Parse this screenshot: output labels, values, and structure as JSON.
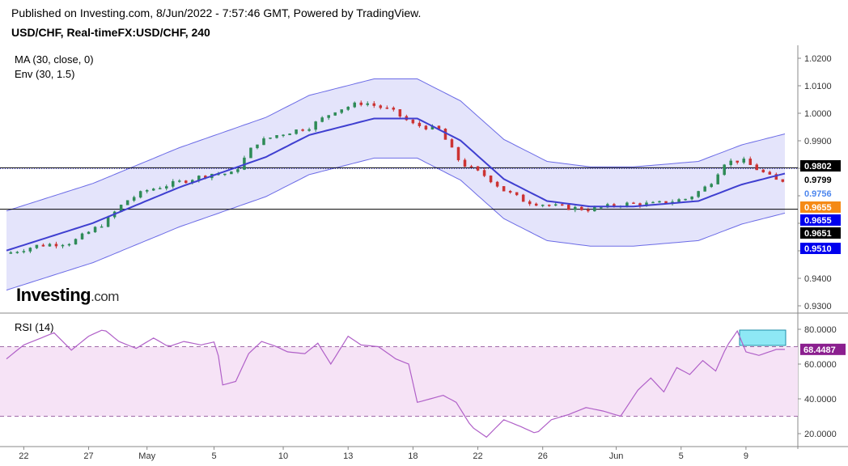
{
  "header": {
    "published": "Published on Investing.com, 8/Jun/2022 - 7:57:46 GMT, Powered by TradingView.",
    "symbol": "USD/CHF, Real-timeFX:USD/CHF, 240"
  },
  "indicators": {
    "ma": "MA (30, close, 0)",
    "env": "Env (30, 1.5)",
    "rsi": "RSI (14)"
  },
  "logo": {
    "brand": "Investing",
    "suffix": ".com"
  },
  "colors": {
    "ma_line": "#3f3fd0",
    "envelope_fill": "#e4e4fb",
    "envelope_line": "#6b6be6",
    "candle_up": "#2e8b57",
    "candle_down": "#cc3333",
    "rsi_line": "#b060c8",
    "rsi_fill": "#f6e3f6",
    "label_black": "#000000",
    "label_white": "#ffffff",
    "label_blue": "#0000ee",
    "label_lightblue": "#4d87ee",
    "label_orange": "#f58a16",
    "label_purple": "#8b1f8f"
  },
  "chart_data": {
    "type": "candlestick",
    "price_axis": {
      "ticks": [
        0.93,
        0.94,
        0.95,
        0.96,
        0.97,
        0.98,
        0.99,
        1.0,
        1.01,
        1.02
      ],
      "tick_labels": [
        "0.9300",
        "0.9400",
        "",
        "",
        "",
        "",
        "0.9900",
        "1.0000",
        "1.0100",
        "1.0200"
      ]
    },
    "x_axis": {
      "tick_labels": [
        "22",
        "27",
        "May",
        "5",
        "10",
        "13",
        "18",
        "22",
        "26",
        "Jun",
        "5",
        "9"
      ]
    },
    "x_tick_index": [
      8,
      38,
      65,
      96,
      128,
      158,
      188,
      218,
      248,
      282,
      312,
      342
    ],
    "horizontal_lines": [
      0.9802,
      0.9651
    ],
    "dotted_line": 0.9799,
    "price_labels": [
      {
        "text": "0.9802",
        "value": 0.9802,
        "style": "black"
      },
      {
        "text": "0.9799",
        "value": 0.9799,
        "style": "white"
      },
      {
        "text": "0.9756",
        "value": 0.9756,
        "style": "lightblue"
      },
      {
        "text": "0.9655",
        "value": 0.9655,
        "style": "orange"
      },
      {
        "text": "0.9655",
        "value": 0.9655,
        "style": "blue"
      },
      {
        "text": "0.9651",
        "value": 0.9651,
        "style": "black"
      },
      {
        "text": "0.9510",
        "value": 0.951,
        "style": "blue"
      }
    ],
    "ma_anchors": [
      [
        0,
        0.9501
      ],
      [
        40,
        0.9601
      ],
      [
        80,
        0.9731
      ],
      [
        120,
        0.9841
      ],
      [
        140,
        0.9921
      ],
      [
        170,
        0.9981
      ],
      [
        190,
        0.9981
      ],
      [
        210,
        0.9901
      ],
      [
        230,
        0.9761
      ],
      [
        250,
        0.9681
      ],
      [
        270,
        0.9661
      ],
      [
        290,
        0.9661
      ],
      [
        320,
        0.9681
      ],
      [
        340,
        0.9741
      ],
      [
        360,
        0.9781
      ]
    ],
    "env_upper_anchors": [
      [
        0,
        0.9645
      ],
      [
        40,
        0.9745
      ],
      [
        80,
        0.9875
      ],
      [
        120,
        0.9985
      ],
      [
        140,
        1.0065
      ],
      [
        170,
        1.0125
      ],
      [
        190,
        1.0125
      ],
      [
        210,
        1.0045
      ],
      [
        230,
        0.9905
      ],
      [
        250,
        0.9825
      ],
      [
        270,
        0.9805
      ],
      [
        290,
        0.9805
      ],
      [
        320,
        0.9825
      ],
      [
        340,
        0.9885
      ],
      [
        360,
        0.9925
      ]
    ],
    "env_lower_anchors": [
      [
        0,
        0.9357
      ],
      [
        40,
        0.9457
      ],
      [
        80,
        0.9587
      ],
      [
        120,
        0.9697
      ],
      [
        140,
        0.9777
      ],
      [
        170,
        0.9837
      ],
      [
        190,
        0.9837
      ],
      [
        210,
        0.9757
      ],
      [
        230,
        0.9617
      ],
      [
        250,
        0.9537
      ],
      [
        270,
        0.9517
      ],
      [
        290,
        0.9517
      ],
      [
        320,
        0.9537
      ],
      [
        340,
        0.9597
      ],
      [
        360,
        0.9637
      ]
    ],
    "close_anchors": [
      [
        0,
        0.949
      ],
      [
        15,
        0.952
      ],
      [
        30,
        0.953
      ],
      [
        45,
        0.96
      ],
      [
        55,
        0.968
      ],
      [
        65,
        0.972
      ],
      [
        75,
        0.974
      ],
      [
        85,
        0.976
      ],
      [
        95,
        0.978
      ],
      [
        105,
        0.978
      ],
      [
        115,
        0.989
      ],
      [
        125,
        0.992
      ],
      [
        140,
        0.995
      ],
      [
        152,
        1.001
      ],
      [
        165,
        1.004
      ],
      [
        178,
        1.001
      ],
      [
        188,
        0.996
      ],
      [
        200,
        0.994
      ],
      [
        210,
        0.982
      ],
      [
        222,
        0.977
      ],
      [
        230,
        0.972
      ],
      [
        240,
        0.968
      ],
      [
        255,
        0.966
      ],
      [
        270,
        0.965
      ],
      [
        285,
        0.967
      ],
      [
        300,
        0.967
      ],
      [
        315,
        0.969
      ],
      [
        325,
        0.974
      ],
      [
        332,
        0.982
      ],
      [
        340,
        0.983
      ],
      [
        356,
        0.9756
      ]
    ],
    "rsi": {
      "ticks": [
        20,
        40,
        60,
        80
      ],
      "tick_labels": [
        "20.0000",
        "40.0000",
        "60.0000",
        "80.0000"
      ],
      "upper_level": 70,
      "lower_level": 30,
      "current": 68.4487,
      "current_label": "68.4487",
      "anchors": [
        [
          0,
          63
        ],
        [
          8,
          71
        ],
        [
          14,
          74
        ],
        [
          22,
          78
        ],
        [
          30,
          68
        ],
        [
          38,
          76
        ],
        [
          45,
          80
        ],
        [
          52,
          73
        ],
        [
          60,
          69
        ],
        [
          68,
          75
        ],
        [
          75,
          70
        ],
        [
          82,
          73
        ],
        [
          90,
          71
        ],
        [
          97,
          73
        ],
        [
          100,
          48
        ],
        [
          106,
          50
        ],
        [
          112,
          66
        ],
        [
          118,
          73
        ],
        [
          125,
          70
        ],
        [
          130,
          67
        ],
        [
          138,
          66
        ],
        [
          144,
          72
        ],
        [
          150,
          60
        ],
        [
          158,
          76
        ],
        [
          164,
          71
        ],
        [
          172,
          70
        ],
        [
          180,
          63
        ],
        [
          186,
          60
        ],
        [
          190,
          38
        ],
        [
          196,
          40
        ],
        [
          202,
          42
        ],
        [
          208,
          38
        ],
        [
          215,
          24
        ],
        [
          222,
          18
        ],
        [
          230,
          28
        ],
        [
          238,
          24
        ],
        [
          245,
          20
        ],
        [
          252,
          28
        ],
        [
          260,
          31
        ],
        [
          268,
          35
        ],
        [
          276,
          33
        ],
        [
          284,
          30
        ],
        [
          292,
          45
        ],
        [
          298,
          52
        ],
        [
          304,
          44
        ],
        [
          310,
          58
        ],
        [
          316,
          54
        ],
        [
          322,
          62
        ],
        [
          328,
          56
        ],
        [
          333,
          70
        ],
        [
          338,
          79
        ],
        [
          342,
          67
        ],
        [
          348,
          65
        ],
        [
          356,
          68.4
        ]
      ]
    }
  }
}
